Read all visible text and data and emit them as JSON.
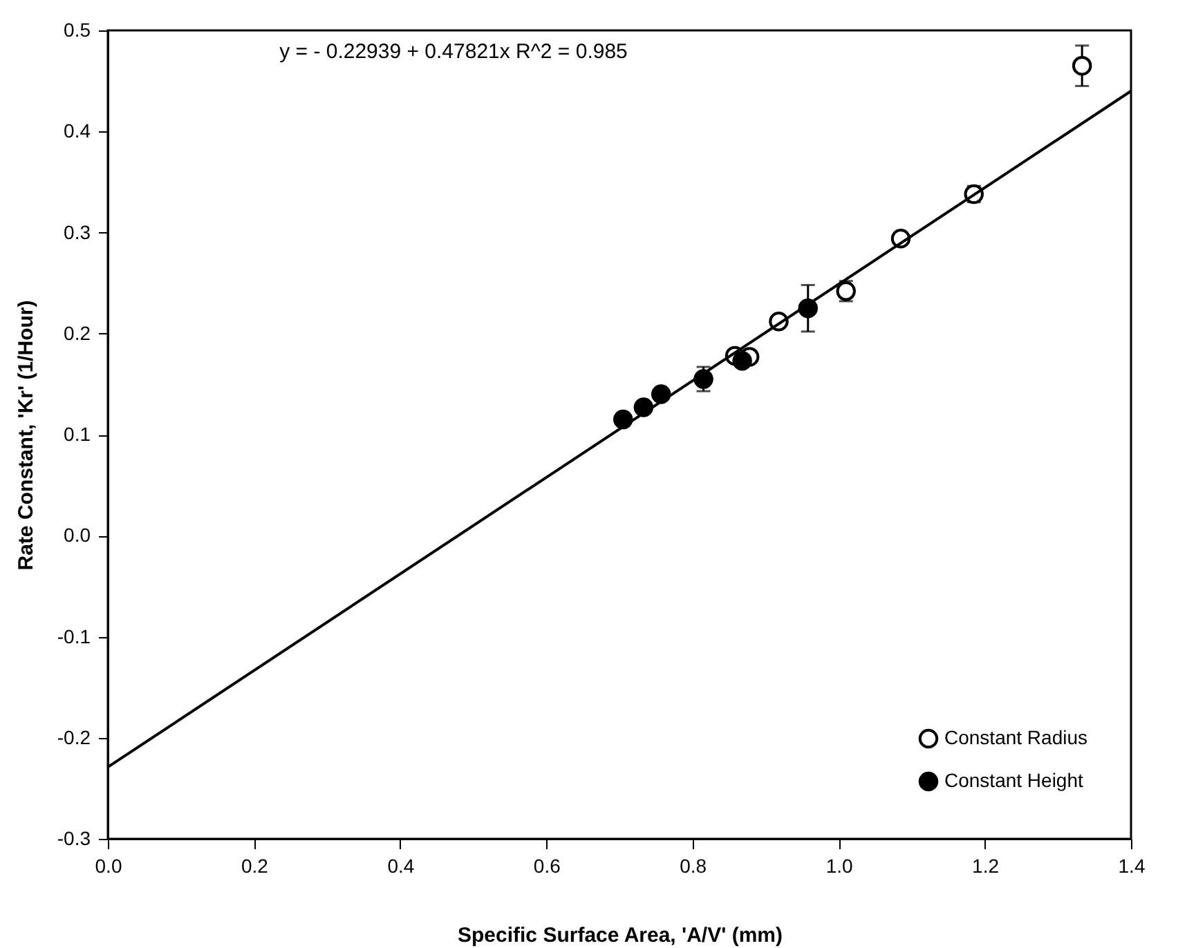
{
  "chart_data": {
    "type": "scatter",
    "xlabel": "Specific  Surface  Area,  'A/V'     (mm)",
    "ylabel": "Rate  Constant,  'Kr'     (1/Hour)",
    "annotations": [
      "y =   - 0.22939 + 0.47821x     R^2 = 0.985"
    ],
    "series": [
      {
        "name": "Constant Radius",
        "color": "#000000",
        "marker": "circle",
        "x": [
          0.858,
          0.878,
          0.918,
          1.01,
          1.085,
          1.185,
          1.333
        ],
        "values": [
          0.178,
          0.177,
          0.212,
          0.242,
          0.294,
          0.338,
          0.465
        ],
        "errors": [
          null,
          null,
          null,
          0.01,
          null,
          0.008,
          0.02
        ]
      },
      {
        "name": "Constant Height",
        "color": "#000000",
        "marker": "circle",
        "x": [
          0.705,
          0.733,
          0.757,
          0.815,
          0.868,
          0.958
        ],
        "values": [
          0.115,
          0.127,
          0.14,
          0.155,
          0.173,
          0.225
        ],
        "errors": [
          null,
          null,
          null,
          0.012,
          null,
          0.023
        ]
      },
      {
        "type": "line",
        "color": "#000000",
        "marker": "none",
        "x": [
          0,
          1.4
        ],
        "values": [
          -0.229,
          0.44
        ]
      }
    ],
    "xlim": [
      0,
      1.4
    ],
    "xticks": [
      {
        "value": 0,
        "label": "0.0"
      },
      0.2,
      0.4,
      0.6,
      0.8,
      {
        "value": 1,
        "label": "1.0"
      },
      1.2,
      1.4
    ],
    "ylim": [
      -0.3,
      0.5
    ],
    "yticks": [
      -0.3,
      -0.2,
      -0.1,
      {
        "value": 0,
        "label": "0.0"
      },
      0.1,
      0.2,
      0.3,
      0.4,
      0.5
    ],
    "legend": "bottom right",
    "grid": false,
    "line_style": "solid"
  }
}
